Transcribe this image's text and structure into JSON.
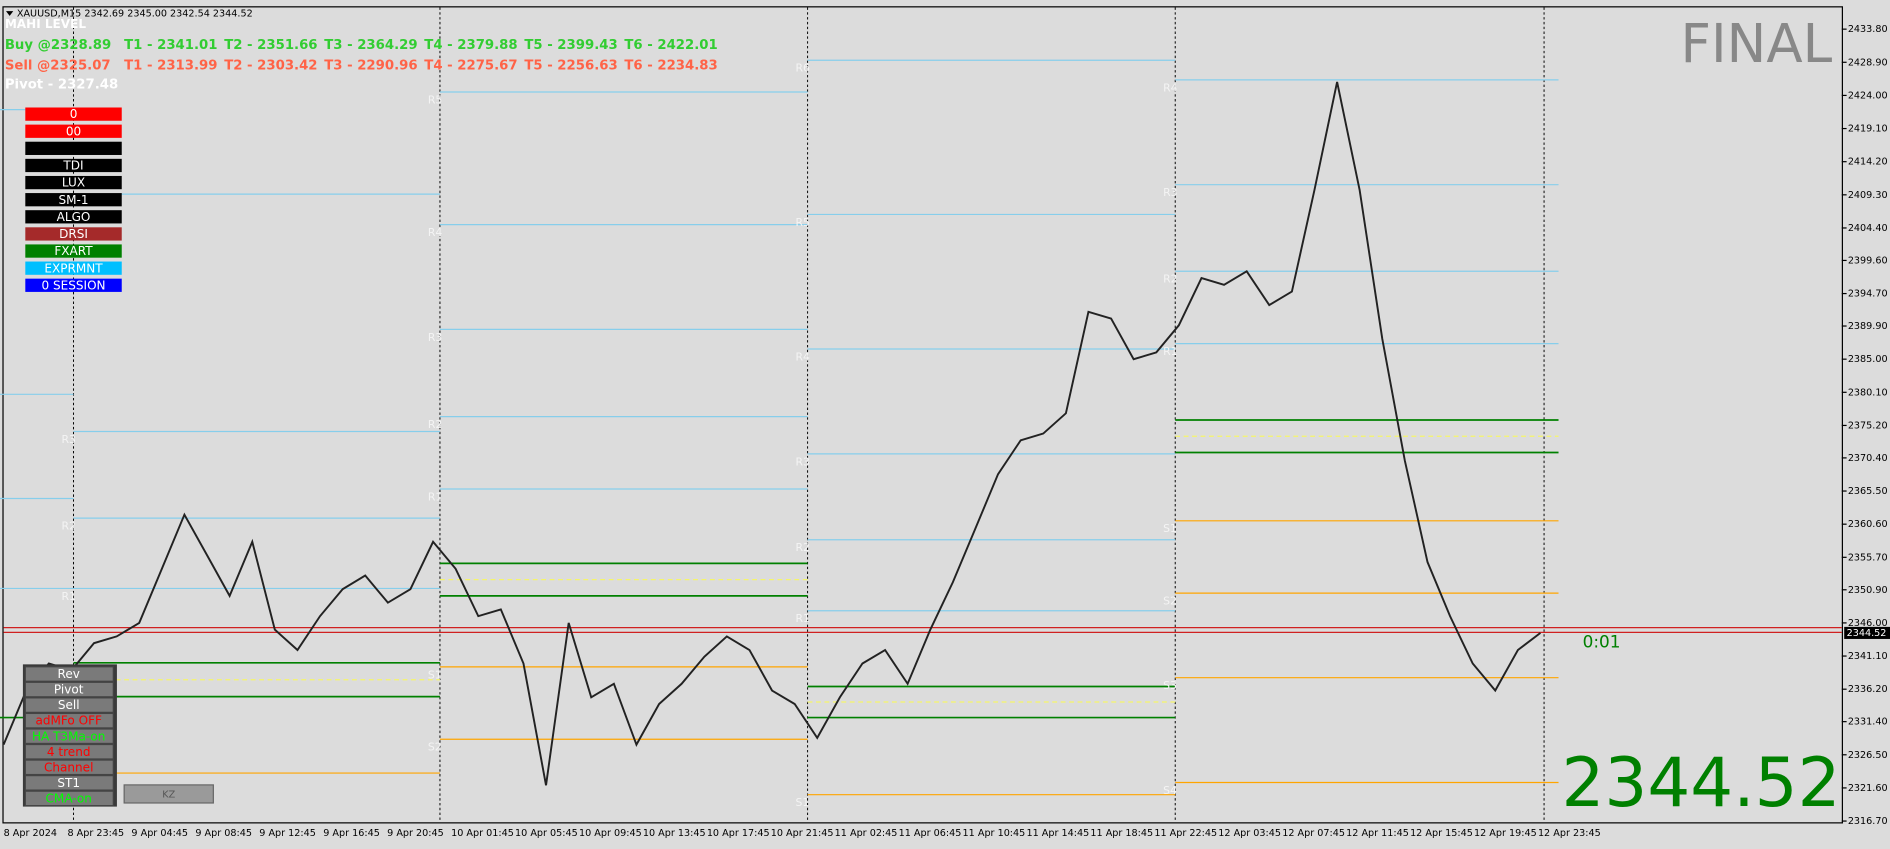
{
  "header": {
    "symbol_line": "XAUUSD,M15  2342.69 2345.00 2342.54 2344.52",
    "indicator": "MAHI LEVEL",
    "buy": {
      "entry": "Buy @2328.89",
      "targets": [
        "T1 - 2341.01",
        "T2 - 2351.66",
        "T3 - 2364.29",
        "T4 - 2379.88",
        "T5 - 2399.43",
        "T6 - 2422.01"
      ]
    },
    "sell": {
      "entry": "Sell @2325.07",
      "targets": [
        "T1 - 2313.99",
        "T2 - 2303.42",
        "T3 - 2290.96",
        "T4 - 2275.67",
        "T5 - 2256.63",
        "T6 - 2234.83"
      ]
    },
    "pivot": "Pivot - 2327.48"
  },
  "panel_buttons": [
    {
      "text": "0",
      "color": "#ff0000"
    },
    {
      "text": "00",
      "color": "#ff0000"
    },
    {
      "text": "",
      "color": "#000000"
    },
    {
      "text": "TDI",
      "color": "#000000"
    },
    {
      "text": "LUX",
      "color": "#000000"
    },
    {
      "text": "SM-1",
      "color": "#000000"
    },
    {
      "text": "ALGO",
      "color": "#000000"
    },
    {
      "text": "DRSI",
      "color": "#a52a2a"
    },
    {
      "text": "FXART",
      "color": "#008000"
    },
    {
      "text": "EXPRMNT",
      "color": "#00bfff"
    },
    {
      "text": "0  SESSION",
      "color": "#0000ff"
    }
  ],
  "tool_buttons": [
    {
      "text": "Rev",
      "color": "#ffffff"
    },
    {
      "text": "Pivot",
      "color": "#ffffff"
    },
    {
      "text": "Sell",
      "color": "#ffffff"
    },
    {
      "text": "adMFo OFF",
      "color": "#ff0000"
    },
    {
      "text": "HA T3Ma-on",
      "color": "#00ff00"
    },
    {
      "text": "4 trend",
      "color": "#ff0000"
    },
    {
      "text": "Channel",
      "color": "#ff0000"
    },
    {
      "text": "ST1",
      "color": "#ffffff"
    },
    {
      "text": "CMA-on",
      "color": "#00ff00"
    }
  ],
  "kz_button": "KZ",
  "status": {
    "final": "FINAL",
    "countdown": "0:01",
    "price": "2344.52"
  },
  "chart": {
    "ylim": [
      2316.7,
      2433.8
    ],
    "yticks": [
      {
        "value": 2433.8,
        "label": "2433.80"
      },
      {
        "value": 2428.9,
        "label": "2428.90"
      },
      {
        "value": 2424.0,
        "label": "2424.00"
      },
      {
        "value": 2419.1,
        "label": "2419.10"
      },
      {
        "value": 2414.2,
        "label": "2414.20"
      },
      {
        "value": 2409.3,
        "label": "2409.30"
      },
      {
        "value": 2404.4,
        "label": "2404.40"
      },
      {
        "value": 2399.6,
        "label": "2399.60"
      },
      {
        "value": 2394.7,
        "label": "2394.70"
      },
      {
        "value": 2389.9,
        "label": "2389.90"
      },
      {
        "value": 2385.0,
        "label": "2385.00"
      },
      {
        "value": 2380.1,
        "label": "2380.10"
      },
      {
        "value": 2375.2,
        "label": "2375.20"
      },
      {
        "value": 2370.4,
        "label": "2370.40"
      },
      {
        "value": 2365.5,
        "label": "2365.50"
      },
      {
        "value": 2360.6,
        "label": "2360.60"
      },
      {
        "value": 2355.7,
        "label": "2355.70"
      },
      {
        "value": 2350.9,
        "label": "2350.90"
      },
      {
        "value": 2346.0,
        "label": "2346.00"
      },
      {
        "value": 2341.1,
        "label": "2341.10"
      },
      {
        "value": 2336.2,
        "label": "2336.20"
      },
      {
        "value": 2331.4,
        "label": "2331.40"
      },
      {
        "value": 2326.5,
        "label": "2326.50"
      },
      {
        "value": 2321.6,
        "label": "2321.60"
      },
      {
        "value": 2316.7,
        "label": "2316.70"
      }
    ],
    "xticks": [
      "8 Apr 2024",
      "8 Apr 23:45",
      "9 Apr 04:45",
      "9 Apr 08:45",
      "9 Apr 12:45",
      "9 Apr 16:45",
      "9 Apr 20:45",
      "10 Apr 01:45",
      "10 Apr 05:45",
      "10 Apr 09:45",
      "10 Apr 13:45",
      "10 Apr 17:45",
      "10 Apr 21:45",
      "11 Apr 02:45",
      "11 Apr 06:45",
      "11 Apr 10:45",
      "11 Apr 14:45",
      "11 Apr 18:45",
      "11 Apr 22:45",
      "12 Apr 03:45",
      "12 Apr 07:45",
      "12 Apr 11:45",
      "12 Apr 15:45",
      "12 Apr 19:45",
      "12 Apr 23:45"
    ],
    "price_values": [
      2328,
      2336,
      2340,
      2339,
      2343,
      2344,
      2346,
      2354,
      2362,
      2356,
      2350,
      2358,
      2345,
      2342,
      2347,
      2351,
      2353,
      2349,
      2351,
      2358,
      2354,
      2347,
      2348,
      2340,
      2322,
      2346,
      2335,
      2337,
      2328,
      2334,
      2337,
      2341,
      2344,
      2342,
      2336,
      2334,
      2329,
      2335,
      2340,
      2342,
      2337,
      2345,
      2352,
      2360,
      2368,
      2373,
      2374,
      2377,
      2392,
      2391,
      2385,
      2386,
      2390,
      2397,
      2396,
      2398,
      2393,
      2395,
      2410,
      2426,
      2410,
      2388,
      2370,
      2355,
      2347,
      2340,
      2336,
      2342,
      2344.52
    ],
    "price_color": "#222222",
    "current_price": {
      "value": 2344.52,
      "label": "2344.52"
    },
    "red_lines": [
      2345.3,
      2344.6
    ],
    "levels": [
      [
        {
          "price": 2421.9,
          "kind": "r"
        },
        {
          "price": 2379.8,
          "kind": "r"
        },
        {
          "price": 2364.4,
          "kind": "r"
        },
        {
          "price": 2351.1,
          "kind": "r"
        },
        {
          "price": 2332.0,
          "kind": "g"
        }
      ],
      [
        {
          "label": "R4",
          "price": 2409.4,
          "kind": "r"
        },
        {
          "label": "R3",
          "price": 2374.3,
          "kind": "r"
        },
        {
          "label": "R2",
          "price": 2361.5,
          "kind": "r"
        },
        {
          "label": "R1",
          "price": 2351.1,
          "kind": "r"
        },
        {
          "price": 2340.1,
          "kind": "g"
        },
        {
          "price": 2337.6,
          "kind": "y"
        },
        {
          "price": 2335.1,
          "kind": "g"
        },
        {
          "label": "S1",
          "price": 2323.8,
          "kind": "s"
        }
      ],
      [
        {
          "label": "R5",
          "price": 2424.5,
          "kind": "r"
        },
        {
          "label": "R4",
          "price": 2404.9,
          "kind": "r"
        },
        {
          "label": "R3",
          "price": 2389.4,
          "kind": "r"
        },
        {
          "label": "R2",
          "price": 2376.5,
          "kind": "r"
        },
        {
          "label": "R1",
          "price": 2365.8,
          "kind": "r"
        },
        {
          "price": 2354.8,
          "kind": "g"
        },
        {
          "price": 2352.4,
          "kind": "y"
        },
        {
          "price": 2350.0,
          "kind": "g"
        },
        {
          "label": "S1",
          "price": 2339.5,
          "kind": "s"
        },
        {
          "label": "S2",
          "price": 2328.8,
          "kind": "s"
        }
      ],
      [
        {
          "label": "R6",
          "price": 2429.2,
          "kind": "r"
        },
        {
          "label": "R5",
          "price": 2406.4,
          "kind": "r"
        },
        {
          "label": "R4",
          "price": 2386.5,
          "kind": "r"
        },
        {
          "label": "R3",
          "price": 2371.0,
          "kind": "r"
        },
        {
          "label": "R2",
          "price": 2358.3,
          "kind": "r"
        },
        {
          "label": "R1",
          "price": 2347.8,
          "kind": "r"
        },
        {
          "price": 2336.6,
          "kind": "g"
        },
        {
          "price": 2334.3,
          "kind": "y"
        },
        {
          "price": 2332.0,
          "kind": "g"
        },
        {
          "label": "S1",
          "price": 2320.6,
          "kind": "s"
        }
      ],
      [
        {
          "label": "R4",
          "price": 2426.3,
          "kind": "r"
        },
        {
          "label": "R3",
          "price": 2410.8,
          "kind": "r"
        },
        {
          "label": "R2",
          "price": 2398.0,
          "kind": "r"
        },
        {
          "label": "R1",
          "price": 2387.3,
          "kind": "r"
        },
        {
          "price": 2376.0,
          "kind": "g"
        },
        {
          "price": 2373.6,
          "kind": "y"
        },
        {
          "price": 2371.2,
          "kind": "g"
        },
        {
          "label": "S1",
          "price": 2361.1,
          "kind": "s"
        },
        {
          "label": "S2",
          "price": 2350.4,
          "kind": "s"
        },
        {
          "label": "S3",
          "price": 2337.9,
          "kind": "s"
        },
        {
          "label": "S4",
          "price": 2322.4,
          "kind": "s"
        }
      ]
    ]
  }
}
